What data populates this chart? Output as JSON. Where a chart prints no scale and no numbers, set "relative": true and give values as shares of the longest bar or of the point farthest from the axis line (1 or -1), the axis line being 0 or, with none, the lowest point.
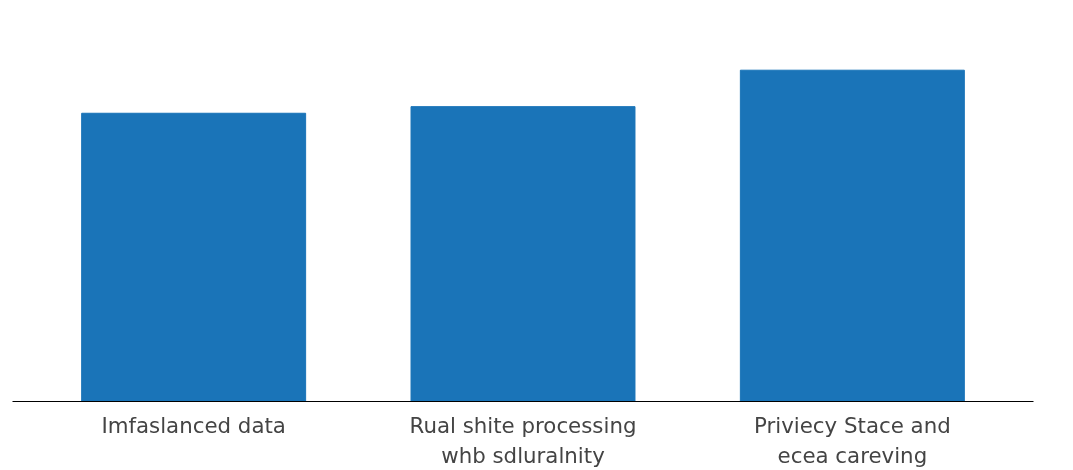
{
  "chart_data": {
    "type": "bar",
    "relative": true,
    "categories": [
      "Imfaslanced data",
      "Rual shite processing\nwhb sdluralnity",
      "Priviecy Stace and\necea careving"
    ],
    "values": [
      0.87,
      0.89,
      1
    ],
    "color": "#1a74b8",
    "grid": false
  }
}
